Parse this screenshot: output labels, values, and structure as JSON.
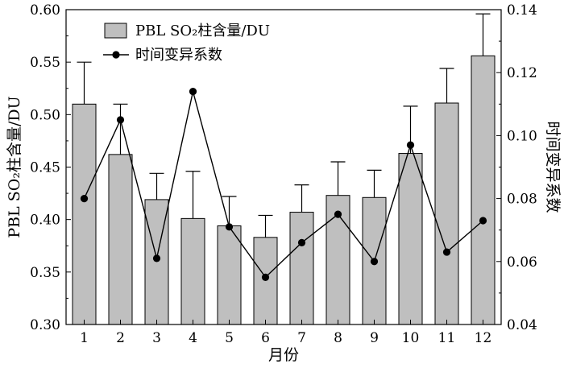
{
  "chart_data": {
    "type": "bar+line",
    "categories": [
      "1",
      "2",
      "3",
      "4",
      "5",
      "6",
      "7",
      "8",
      "9",
      "10",
      "11",
      "12"
    ],
    "series": [
      {
        "name": "PBL SO₂柱含量/DU",
        "axis": "left",
        "kind": "bar",
        "values": [
          0.51,
          0.462,
          0.419,
          0.401,
          0.394,
          0.383,
          0.407,
          0.423,
          0.421,
          0.463,
          0.511,
          0.556
        ],
        "error_plus": [
          0.04,
          0.048,
          0.025,
          0.045,
          0.028,
          0.021,
          0.026,
          0.032,
          0.026,
          0.045,
          0.033,
          0.04
        ]
      },
      {
        "name": "时间变异系数",
        "axis": "right",
        "kind": "line",
        "values": [
          0.08,
          0.105,
          0.061,
          0.114,
          0.071,
          0.055,
          0.066,
          0.075,
          0.06,
          0.097,
          0.063,
          0.073
        ]
      }
    ],
    "xlabel": "月份",
    "ylabel_left": "PBL SO₂柱含量/DU",
    "ylabel_right": "时间变异系数",
    "ylim_left": [
      0.3,
      0.6
    ],
    "ylim_right": [
      0.04,
      0.14
    ],
    "yticks_left": [
      "0.30",
      "0.35",
      "0.40",
      "0.45",
      "0.50",
      "0.55",
      "0.60"
    ],
    "yticks_right": [
      "0.04",
      "0.06",
      "0.08",
      "0.10",
      "0.12",
      "0.14"
    ],
    "legend_position": "top-left",
    "grid": false,
    "colors": {
      "bar_fill": "#bfbfbf",
      "bar_stroke": "#000000",
      "line": "#000000",
      "marker": "#000000"
    }
  }
}
